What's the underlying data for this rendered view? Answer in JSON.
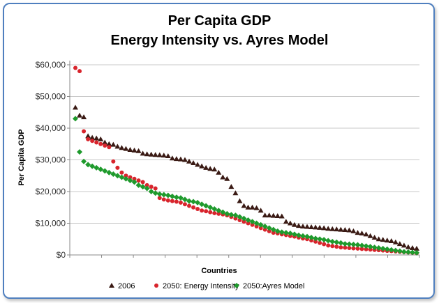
{
  "chart_data": {
    "type": "scatter",
    "title_line1": "Per Capita GDP",
    "title_line2": "Energy Intensity vs.   Ayres Model",
    "xlabel": "Countries",
    "ylabel": "Per Capita GDP",
    "ylim": [
      0,
      60000
    ],
    "yticks": [
      "$0",
      "$10,000",
      "$20,000",
      "$30,000",
      "$40,000",
      "$50,000",
      "$60,000"
    ],
    "legend_position": "bottom",
    "grid": "horizontal",
    "series": [
      {
        "name": "2006",
        "marker": "triangle",
        "color": "#3a1a14",
        "values": [
          46500,
          44000,
          43500,
          37500,
          37000,
          36800,
          36500,
          35500,
          35000,
          34800,
          34200,
          33800,
          33500,
          33200,
          33000,
          32800,
          32000,
          31800,
          31700,
          31600,
          31500,
          31400,
          31200,
          30500,
          30300,
          30200,
          30000,
          29500,
          29000,
          28500,
          28000,
          27500,
          27200,
          27000,
          26000,
          24500,
          24000,
          21500,
          19500,
          17000,
          15500,
          15000,
          15000,
          14800,
          14000,
          12500,
          12500,
          12400,
          12300,
          12200,
          10500,
          10000,
          9500,
          9200,
          9000,
          8900,
          8800,
          8700,
          8600,
          8500,
          8300,
          8200,
          8100,
          8000,
          7900,
          7800,
          7500,
          7000,
          6800,
          6500,
          6000,
          5500,
          5000,
          4800,
          4600,
          4400,
          4000,
          3500,
          3000,
          2500,
          2200,
          2000
        ]
      },
      {
        "name": "2050: Energy Intensity",
        "marker": "circle",
        "color": "#d8242c",
        "values": [
          59000,
          58000,
          39000,
          36500,
          36000,
          35500,
          35000,
          34500,
          34000,
          29500,
          27500,
          26000,
          25000,
          24500,
          24000,
          23500,
          23000,
          22000,
          21500,
          21000,
          18000,
          17500,
          17200,
          17000,
          16800,
          16500,
          16000,
          15500,
          15000,
          14500,
          14000,
          13800,
          13500,
          13200,
          13000,
          12800,
          12500,
          12000,
          11500,
          11000,
          10500,
          10000,
          9500,
          9000,
          8500,
          8000,
          7500,
          7000,
          6800,
          6500,
          6300,
          6000,
          5800,
          5500,
          5200,
          5000,
          4600,
          4200,
          3800,
          3400,
          3000,
          2800,
          2600,
          2400,
          2300,
          2200,
          2100,
          2000,
          1900,
          1800,
          1700,
          1600,
          1500,
          1400,
          1300,
          1200,
          1100,
          1000,
          900,
          800,
          700,
          600
        ]
      },
      {
        "name": "2050:Ayres Model",
        "marker": "diamond",
        "color": "#1e9a2c",
        "values": [
          43000,
          32500,
          29500,
          28500,
          28000,
          27500,
          27000,
          26500,
          26000,
          25500,
          25000,
          24500,
          24000,
          23500,
          23000,
          22000,
          21500,
          21000,
          20000,
          19500,
          19200,
          19000,
          18800,
          18500,
          18200,
          18000,
          17500,
          17000,
          16800,
          16500,
          16000,
          15500,
          15000,
          14500,
          14000,
          13500,
          13000,
          12700,
          12500,
          12000,
          11500,
          11000,
          10500,
          10000,
          9500,
          9000,
          8500,
          8000,
          7500,
          7200,
          7000,
          6800,
          6500,
          6200,
          6000,
          5800,
          5500,
          5200,
          5000,
          4800,
          4500,
          4200,
          4000,
          3800,
          3500,
          3400,
          3300,
          3200,
          3000,
          2800,
          2600,
          2400,
          2200,
          2000,
          1800,
          1600,
          1400,
          1200,
          1000,
          900,
          800,
          700
        ]
      }
    ]
  }
}
